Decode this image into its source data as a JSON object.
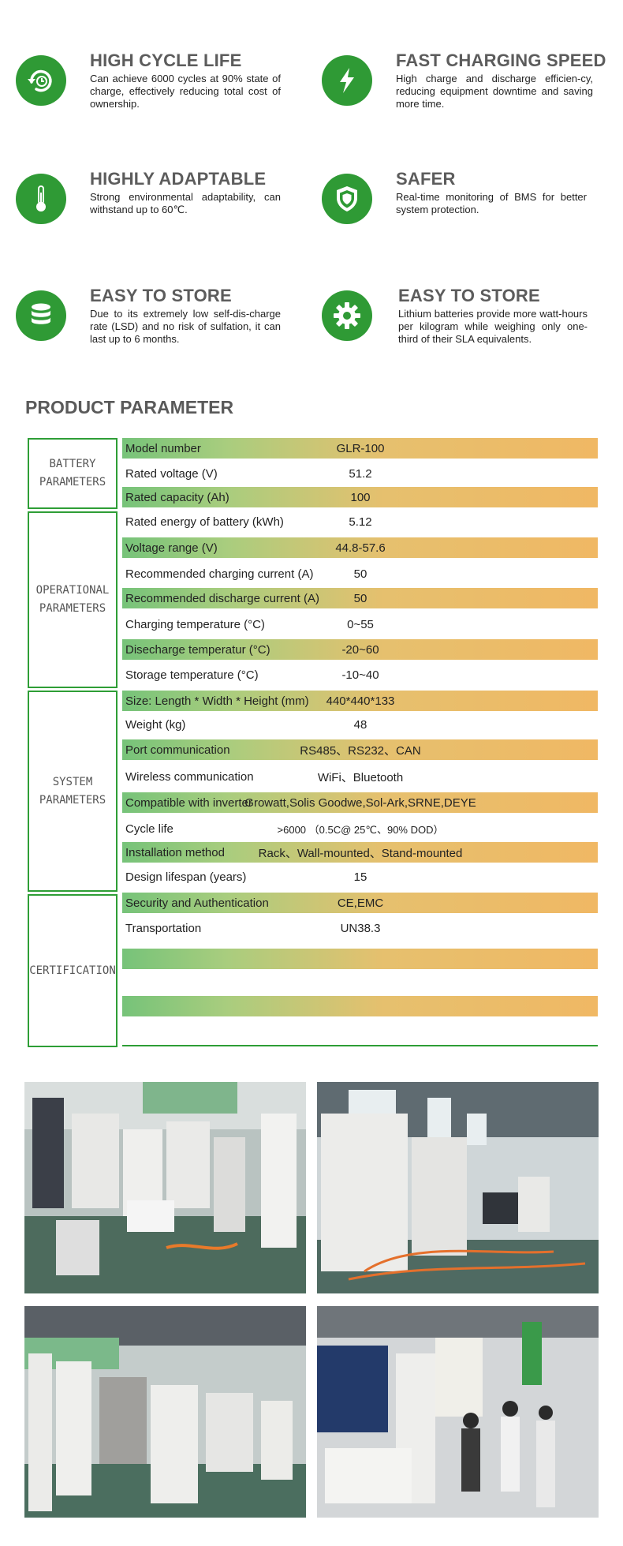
{
  "features": [
    {
      "title": "HIGH CYCLE LIFE",
      "text": "Can achieve 6000 cycles at 90% state of charge, effectively reducing total cost of ownership.",
      "icon": "cycle-clock-icon"
    },
    {
      "title": "FAST CHARGING SPEED",
      "text": "High charge and discharge efficien-cy, reducing equipment downtime and saving more time.",
      "icon": "lightning-icon"
    },
    {
      "title": "HIGHLY ADAPTABLE",
      "text": "Strong environmental adaptability, can withstand up to 60℃.",
      "icon": "thermometer-icon"
    },
    {
      "title": "SAFER",
      "text": "Real-time monitoring of BMS for better system protection.",
      "icon": "shield-icon"
    },
    {
      "title": "EASY TO STORE",
      "text": "Due to its extremely low self-dis-charge rate (LSD) and no risk of sulfation, it can last up to 6 months.",
      "icon": "database-icon"
    },
    {
      "title": "EASY TO STORE",
      "text": "Lithium batteries provide more watt-hours per kilogram while weighing only one-third of their SLA equivalents.",
      "icon": "gear-icon"
    }
  ],
  "section_title": "PRODUCT PARAMETER",
  "groups": [
    {
      "name": "BATTERY PARAMETERS",
      "line1": "BATTERY",
      "line2": "PARAMETERS"
    },
    {
      "name": "OPERATIONAL PARAMETERS",
      "line1": "OPERATIONAL",
      "line2": "PARAMETERS"
    },
    {
      "name": "SYSTEM PARAMETERS",
      "line1": "SYSTEM",
      "line2": "PARAMETERS"
    },
    {
      "name": "CERTIFICATION",
      "line1": "CERTIFICATION",
      "line2": ""
    }
  ],
  "rows": [
    {
      "label": "Model number",
      "value": "GLR-100"
    },
    {
      "label": "Rated voltage (V)",
      "value": "51.2"
    },
    {
      "label": "Rated capacity (Ah)",
      "value": "100"
    },
    {
      "label": "Rated energy of battery (kWh)",
      "value": "5.12"
    },
    {
      "label": "Voltage range (V)",
      "value": "44.8-57.6"
    },
    {
      "label": "Recommended charging current (A)",
      "value": "50"
    },
    {
      "label": "Recommended discharge current (A)",
      "value": "50"
    },
    {
      "label": "Charging temperature (°C)",
      "value": "0~55"
    },
    {
      "label": "Disecharge temperatur (°C)",
      "value": "-20~60"
    },
    {
      "label": "Storage temperature (°C)",
      "value": "-10~40"
    },
    {
      "label": "Size: Length * Width * Height (mm)",
      "value": "440*440*133"
    },
    {
      "label": "Weight (kg)",
      "value": "48"
    },
    {
      "label": "Port communication",
      "value": "RS485、RS232、CAN"
    },
    {
      "label": "Wireless communication",
      "value": "WiFi、Bluetooth"
    },
    {
      "label": "Compatible with inverter",
      "value": "Growatt,Solis Goodwe,Sol-Ark,SRNE,DEYE"
    },
    {
      "label": "Cycle life",
      "value": ">6000 （0.5C@ 25℃、90% DOD）"
    },
    {
      "label": "Installation method",
      "value": "Rack、Wall-mounted、Stand-mounted"
    },
    {
      "label": "Design lifespan (years)",
      "value": "15"
    },
    {
      "label": "Security and Authentication",
      "value": "CE,EMC"
    },
    {
      "label": "Transportation",
      "value": "UN38.3"
    },
    {
      "label": "",
      "value": ""
    },
    {
      "label": "",
      "value": ""
    },
    {
      "label": "",
      "value": ""
    },
    {
      "label": "",
      "value": ""
    }
  ],
  "colors": {
    "accent_green": "#2e9e36",
    "gradient_green": "#76c379",
    "gradient_orange": "#f0b864"
  },
  "photos": [
    {
      "name": "factory-photo-1"
    },
    {
      "name": "factory-photo-2"
    },
    {
      "name": "factory-photo-3"
    },
    {
      "name": "exhibition-photo"
    }
  ]
}
